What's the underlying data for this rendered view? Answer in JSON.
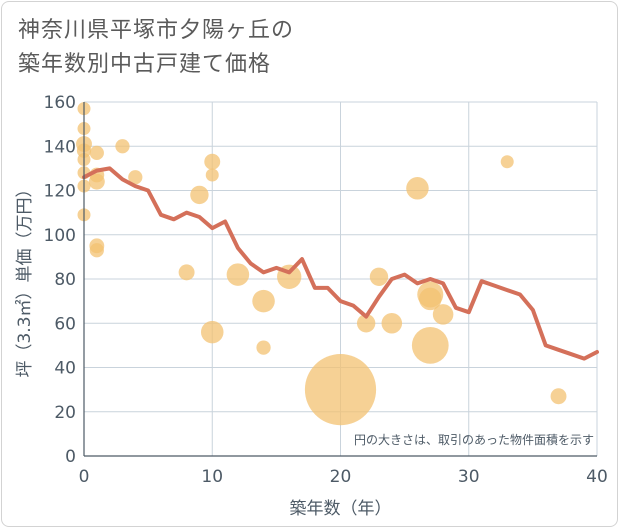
{
  "title_lines": [
    "神奈川県平塚市夕陽ヶ丘の",
    "築年数別中古戸建て価格"
  ],
  "chart_data": {
    "type": "scatter",
    "xlabel": "築年数（年）",
    "ylabel": "坪（3.3㎡）単価（万円）",
    "xlim": [
      0,
      40
    ],
    "ylim": [
      0,
      160
    ],
    "x_ticks": [
      "0",
      "10",
      "20",
      "30",
      "40"
    ],
    "y_ticks": [
      "0",
      "20",
      "40",
      "60",
      "80",
      "100",
      "120",
      "140",
      "160"
    ],
    "grid": true,
    "annotation": "円の大きさは、取引のあった物件面積を示す",
    "colors": {
      "bubble": "#f3c272",
      "line": "#d4705a",
      "grid": "#c9d3dc",
      "axis": "#4d5a66"
    },
    "scatter": [
      {
        "x": 0,
        "y": 157,
        "size": 1
      },
      {
        "x": 0,
        "y": 148,
        "size": 1
      },
      {
        "x": 0,
        "y": 141,
        "size": 1.5
      },
      {
        "x": 0,
        "y": 138,
        "size": 1.2
      },
      {
        "x": 0,
        "y": 134,
        "size": 1
      },
      {
        "x": 0,
        "y": 128,
        "size": 1
      },
      {
        "x": 0,
        "y": 122,
        "size": 1
      },
      {
        "x": 0,
        "y": 109,
        "size": 1
      },
      {
        "x": 1,
        "y": 137,
        "size": 1.2
      },
      {
        "x": 1,
        "y": 127,
        "size": 1.3
      },
      {
        "x": 1,
        "y": 124,
        "size": 1.5
      },
      {
        "x": 1,
        "y": 95,
        "size": 1.3
      },
      {
        "x": 1,
        "y": 93,
        "size": 1.2
      },
      {
        "x": 3,
        "y": 140,
        "size": 1.2
      },
      {
        "x": 4,
        "y": 126,
        "size": 1.2
      },
      {
        "x": 8,
        "y": 83,
        "size": 1.5
      },
      {
        "x": 9,
        "y": 118,
        "size": 2
      },
      {
        "x": 10,
        "y": 133,
        "size": 1.5
      },
      {
        "x": 10,
        "y": 127,
        "size": 1
      },
      {
        "x": 10,
        "y": 56,
        "size": 3
      },
      {
        "x": 12,
        "y": 82,
        "size": 3
      },
      {
        "x": 14,
        "y": 70,
        "size": 3
      },
      {
        "x": 14,
        "y": 49,
        "size": 1.2
      },
      {
        "x": 16,
        "y": 81,
        "size": 3.5
      },
      {
        "x": 20,
        "y": 30,
        "size": 30
      },
      {
        "x": 22,
        "y": 60,
        "size": 2
      },
      {
        "x": 23,
        "y": 81,
        "size": 2
      },
      {
        "x": 24,
        "y": 60,
        "size": 2.5
      },
      {
        "x": 26,
        "y": 121,
        "size": 3
      },
      {
        "x": 27,
        "y": 73,
        "size": 4
      },
      {
        "x": 27,
        "y": 71,
        "size": 3
      },
      {
        "x": 27,
        "y": 50,
        "size": 8
      },
      {
        "x": 28,
        "y": 64,
        "size": 2.5
      },
      {
        "x": 33,
        "y": 133,
        "size": 1
      },
      {
        "x": 37,
        "y": 27,
        "size": 1.5
      }
    ],
    "line": {
      "x": [
        0,
        1,
        2,
        3,
        4,
        5,
        6,
        7,
        8,
        9,
        10,
        11,
        12,
        13,
        14,
        15,
        16,
        17,
        18,
        19,
        20,
        21,
        22,
        23,
        24,
        25,
        26,
        27,
        28,
        29,
        30,
        31,
        32,
        33,
        34,
        35,
        36,
        37,
        38,
        39,
        40
      ],
      "y": [
        126,
        129,
        130,
        125,
        122,
        120,
        109,
        107,
        110,
        108,
        103,
        106,
        94,
        87,
        83,
        85,
        83,
        89,
        76,
        76,
        70,
        68,
        63,
        72,
        80,
        82,
        78,
        80,
        78,
        67,
        65,
        79,
        77,
        75,
        73,
        66,
        50,
        48,
        46,
        44,
        47
      ]
    }
  }
}
